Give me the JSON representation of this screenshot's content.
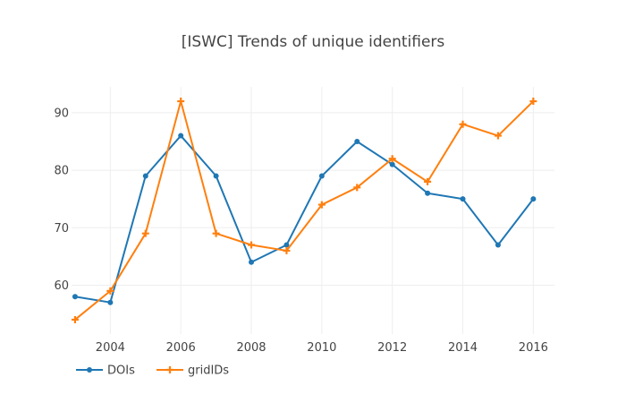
{
  "chart_data": {
    "type": "line",
    "title": "[ISWC] Trends of unique identifiers",
    "xlabel": "",
    "ylabel": "",
    "x": [
      2003,
      2004,
      2005,
      2006,
      2007,
      2008,
      2009,
      2010,
      2011,
      2012,
      2013,
      2014,
      2015,
      2016
    ],
    "xlim": [
      2002.9,
      2016.6
    ],
    "ylim": [
      51.5,
      94.5
    ],
    "x_ticks": [
      2004,
      2006,
      2008,
      2010,
      2012,
      2014,
      2016
    ],
    "y_ticks": [
      60,
      70,
      80,
      90
    ],
    "x_tick_labels": [
      "2004",
      "2006",
      "2008",
      "2010",
      "2012",
      "2014",
      "2016"
    ],
    "y_tick_labels": [
      "60",
      "70",
      "80",
      "90"
    ],
    "grid": true,
    "legend_position": "bottom-left",
    "series": [
      {
        "name": "DOIs",
        "color": "#1f77b4",
        "marker": "circle",
        "values": [
          58,
          57,
          79,
          86,
          79,
          64,
          67,
          79,
          85,
          81,
          76,
          75,
          67,
          75
        ]
      },
      {
        "name": "gridIDs",
        "color": "#ff7f0e",
        "marker": "cross",
        "values": [
          54,
          59,
          69,
          92,
          69,
          67,
          66,
          74,
          77,
          82,
          78,
          88,
          86,
          92
        ]
      }
    ]
  }
}
